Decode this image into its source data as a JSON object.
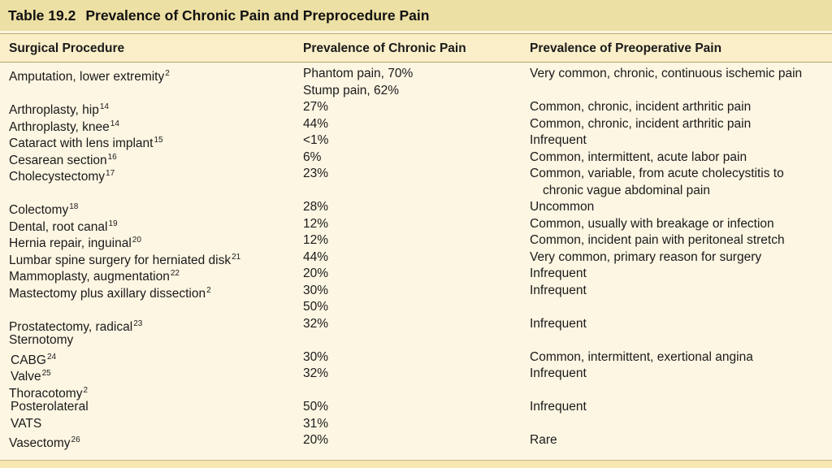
{
  "title": {
    "number": "Table 19.2",
    "text": "Prevalence of Chronic Pain and Preprocedure Pain"
  },
  "headers": [
    "Surgical Procedure",
    "Prevalence of Chronic Pain",
    "Prevalence of Preoperative Pain"
  ],
  "rows": [
    {
      "proc": "Amputation, lower extremity",
      "ref": "2",
      "chronic": [
        "Phantom pain, 70%",
        "Stump pain, 62%"
      ],
      "preop": [
        "Very common, chronic, continuous ischemic pain"
      ],
      "indent": false
    },
    {
      "proc": "Arthroplasty, hip",
      "ref": "14",
      "chronic": [
        "27%"
      ],
      "preop": [
        "Common, chronic, incident arthritic pain"
      ],
      "indent": false
    },
    {
      "proc": "Arthroplasty, knee",
      "ref": "14",
      "chronic": [
        "44%"
      ],
      "preop": [
        "Common, chronic, incident arthritic pain"
      ],
      "indent": false
    },
    {
      "proc": "Cataract with lens implant",
      "ref": "15",
      "chronic": [
        "<1%"
      ],
      "preop": [
        "Infrequent"
      ],
      "indent": false
    },
    {
      "proc": "Cesarean section",
      "ref": "16",
      "chronic": [
        "6%"
      ],
      "preop": [
        "Common, intermittent, acute labor pain"
      ],
      "indent": false
    },
    {
      "proc": "Cholecystectomy",
      "ref": "17",
      "chronic": [
        "23%"
      ],
      "preop": [
        "Common, variable, from acute cholecystitis to",
        "chronic vague abdominal pain"
      ],
      "indent": false
    },
    {
      "proc": "Colectomy",
      "ref": "18",
      "chronic": [
        "28%"
      ],
      "preop": [
        "Uncommon"
      ],
      "indent": false
    },
    {
      "proc": "Dental, root canal",
      "ref": "19",
      "chronic": [
        "12%"
      ],
      "preop": [
        "Common, usually with breakage or infection"
      ],
      "indent": false
    },
    {
      "proc": "Hernia repair, inguinal",
      "ref": "20",
      "chronic": [
        "12%"
      ],
      "preop": [
        "Common, incident pain with peritoneal stretch"
      ],
      "indent": false
    },
    {
      "proc": "Lumbar spine surgery for herniated disk",
      "ref": "21",
      "chronic": [
        "44%"
      ],
      "preop": [
        "Very common, primary reason for surgery"
      ],
      "indent": false
    },
    {
      "proc": "Mammoplasty, augmentation",
      "ref": "22",
      "chronic": [
        "20%"
      ],
      "preop": [
        "Infrequent"
      ],
      "indent": false
    },
    {
      "proc": "Mastectomy plus axillary dissection",
      "ref": "2",
      "chronic": [
        "30%",
        "50%"
      ],
      "preop": [
        "Infrequent"
      ],
      "indent": false
    },
    {
      "proc": "Prostatectomy, radical",
      "ref": "23",
      "chronic": [
        "32%"
      ],
      "preop": [
        "Infrequent"
      ],
      "indent": false
    },
    {
      "proc": "Sternotomy",
      "ref": "",
      "chronic": [
        ""
      ],
      "preop": [
        ""
      ],
      "indent": false
    },
    {
      "proc": "CABG",
      "ref": "24",
      "chronic": [
        "30%"
      ],
      "preop": [
        "Common, intermittent, exertional angina"
      ],
      "indent": true
    },
    {
      "proc": "Valve",
      "ref": "25",
      "chronic": [
        "32%"
      ],
      "preop": [
        "Infrequent"
      ],
      "indent": true
    },
    {
      "proc": "Thoracotomy",
      "ref": "2",
      "chronic": [
        ""
      ],
      "preop": [
        ""
      ],
      "indent": false
    },
    {
      "proc": "Posterolateral",
      "ref": "",
      "chronic": [
        "50%"
      ],
      "preop": [
        "Infrequent"
      ],
      "indent": true
    },
    {
      "proc": "VATS",
      "ref": "",
      "chronic": [
        "31%"
      ],
      "preop": [
        ""
      ],
      "indent": true
    },
    {
      "proc": "Vasectomy",
      "ref": "26",
      "chronic": [
        "20%"
      ],
      "preop": [
        "Rare"
      ],
      "indent": false
    }
  ]
}
